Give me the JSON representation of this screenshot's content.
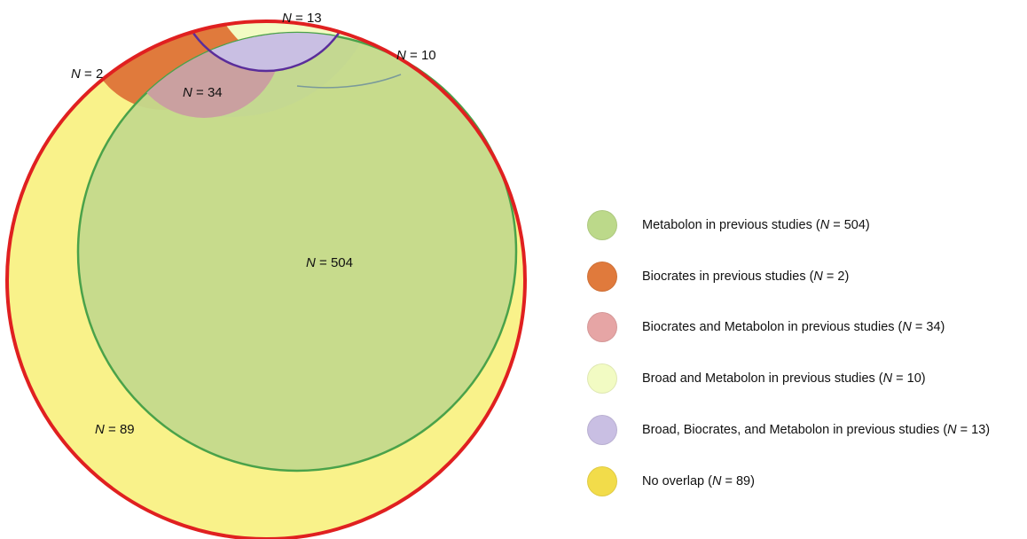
{
  "regions": [
    {
      "id": "metabolon",
      "label_prefix": "N",
      "label_value": "= 504"
    },
    {
      "id": "biocrates",
      "label_prefix": "N",
      "label_value": "= 2"
    },
    {
      "id": "biocrates_metabolon",
      "label_prefix": "N",
      "label_value": "= 34"
    },
    {
      "id": "broad_metabolon",
      "label_prefix": "N",
      "label_value": "= 10"
    },
    {
      "id": "broad_biocrates_metabolon",
      "label_prefix": "N",
      "label_value": "= 13"
    },
    {
      "id": "no_overlap",
      "label_prefix": "N",
      "label_value": "= 89"
    }
  ],
  "legend": [
    {
      "pre": "Metabolon in previous studies (",
      "n": "N",
      "post": " = 504)",
      "color": "#bcd98a"
    },
    {
      "pre": "Biocrates in previous studies (",
      "n": "N",
      "post": " = 2)",
      "color": "#e07a3c"
    },
    {
      "pre": "Biocrates and Metabolon in previous studies (",
      "n": "N",
      "post": " = 34)",
      "color": "#e6a5a5"
    },
    {
      "pre": "Broad and Metabolon in previous studies (",
      "n": "N",
      "post": " = 10)",
      "color": "#f2fbc3"
    },
    {
      "pre": "Broad, Biocrates, and Metabolon in previous studies (",
      "n": "N",
      "post": " = 13)",
      "color": "#c9bfe3"
    },
    {
      "pre": "No overlap (",
      "n": "N",
      "post": " = 89)",
      "color": "#f2dc4a"
    }
  ],
  "colors": {
    "no_overlap_fill": "#f9f28a",
    "outer_ring": "#e02020",
    "metabolon_fill": "#c4d98c",
    "metabolon_stroke": "#4aa24a",
    "broad_stroke": "#5a2d9a",
    "biocrates_fill": "#e07a3c",
    "biocrates_metabolon_fill": "#caa0a0",
    "broad_metabolon_fill": "#f2fbc3",
    "broad_biocrates_metabolon_fill": "#c9bfe3"
  }
}
